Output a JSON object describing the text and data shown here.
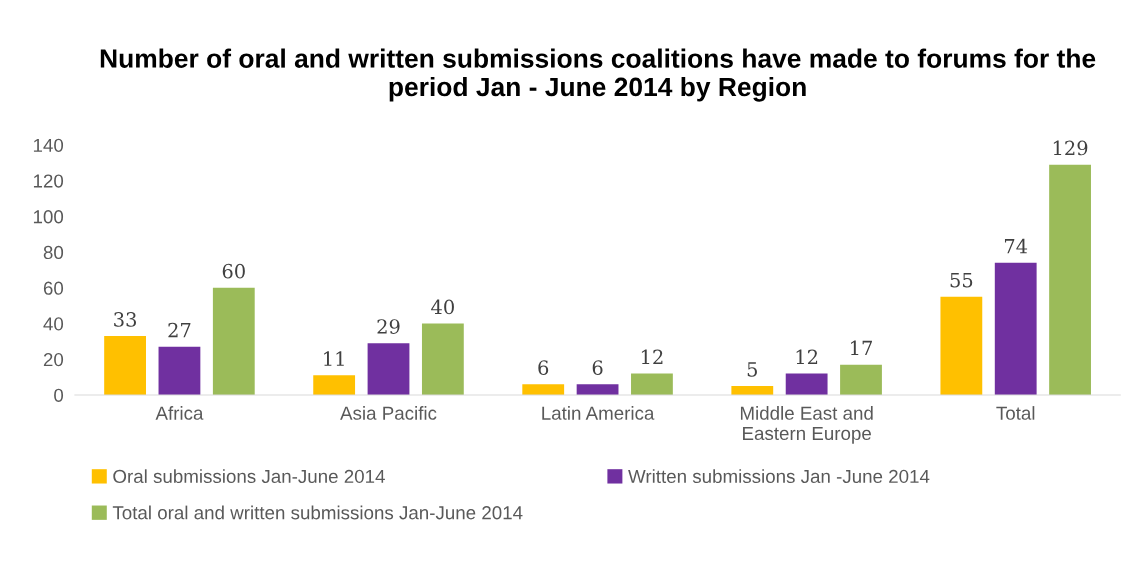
{
  "chart_data": {
    "type": "bar",
    "title": "Number of oral and written submissions coalitions have made to forums for the period Jan - June 2014 by Region",
    "categories": [
      "Africa",
      "Asia Pacific",
      "Latin America",
      "Middle East and\nEastern Europe",
      "Total"
    ],
    "series": [
      {
        "name": "Oral submissions Jan-June 2014",
        "color": "#ffc000",
        "values": [
          33,
          11,
          6,
          5,
          55
        ]
      },
      {
        "name": "Written submissions Jan -June 2014",
        "color": "#7030a0",
        "values": [
          27,
          29,
          6,
          12,
          74
        ]
      },
      {
        "name": "Total oral and written submissions Jan-June 2014",
        "color": "#9bbb59",
        "values": [
          60,
          40,
          12,
          17,
          129
        ]
      }
    ],
    "ylim": [
      0,
      140
    ],
    "yticks": [
      0,
      20,
      40,
      60,
      80,
      100,
      120,
      140
    ],
    "grid": false,
    "legend": "bottom",
    "data_labels": true
  }
}
